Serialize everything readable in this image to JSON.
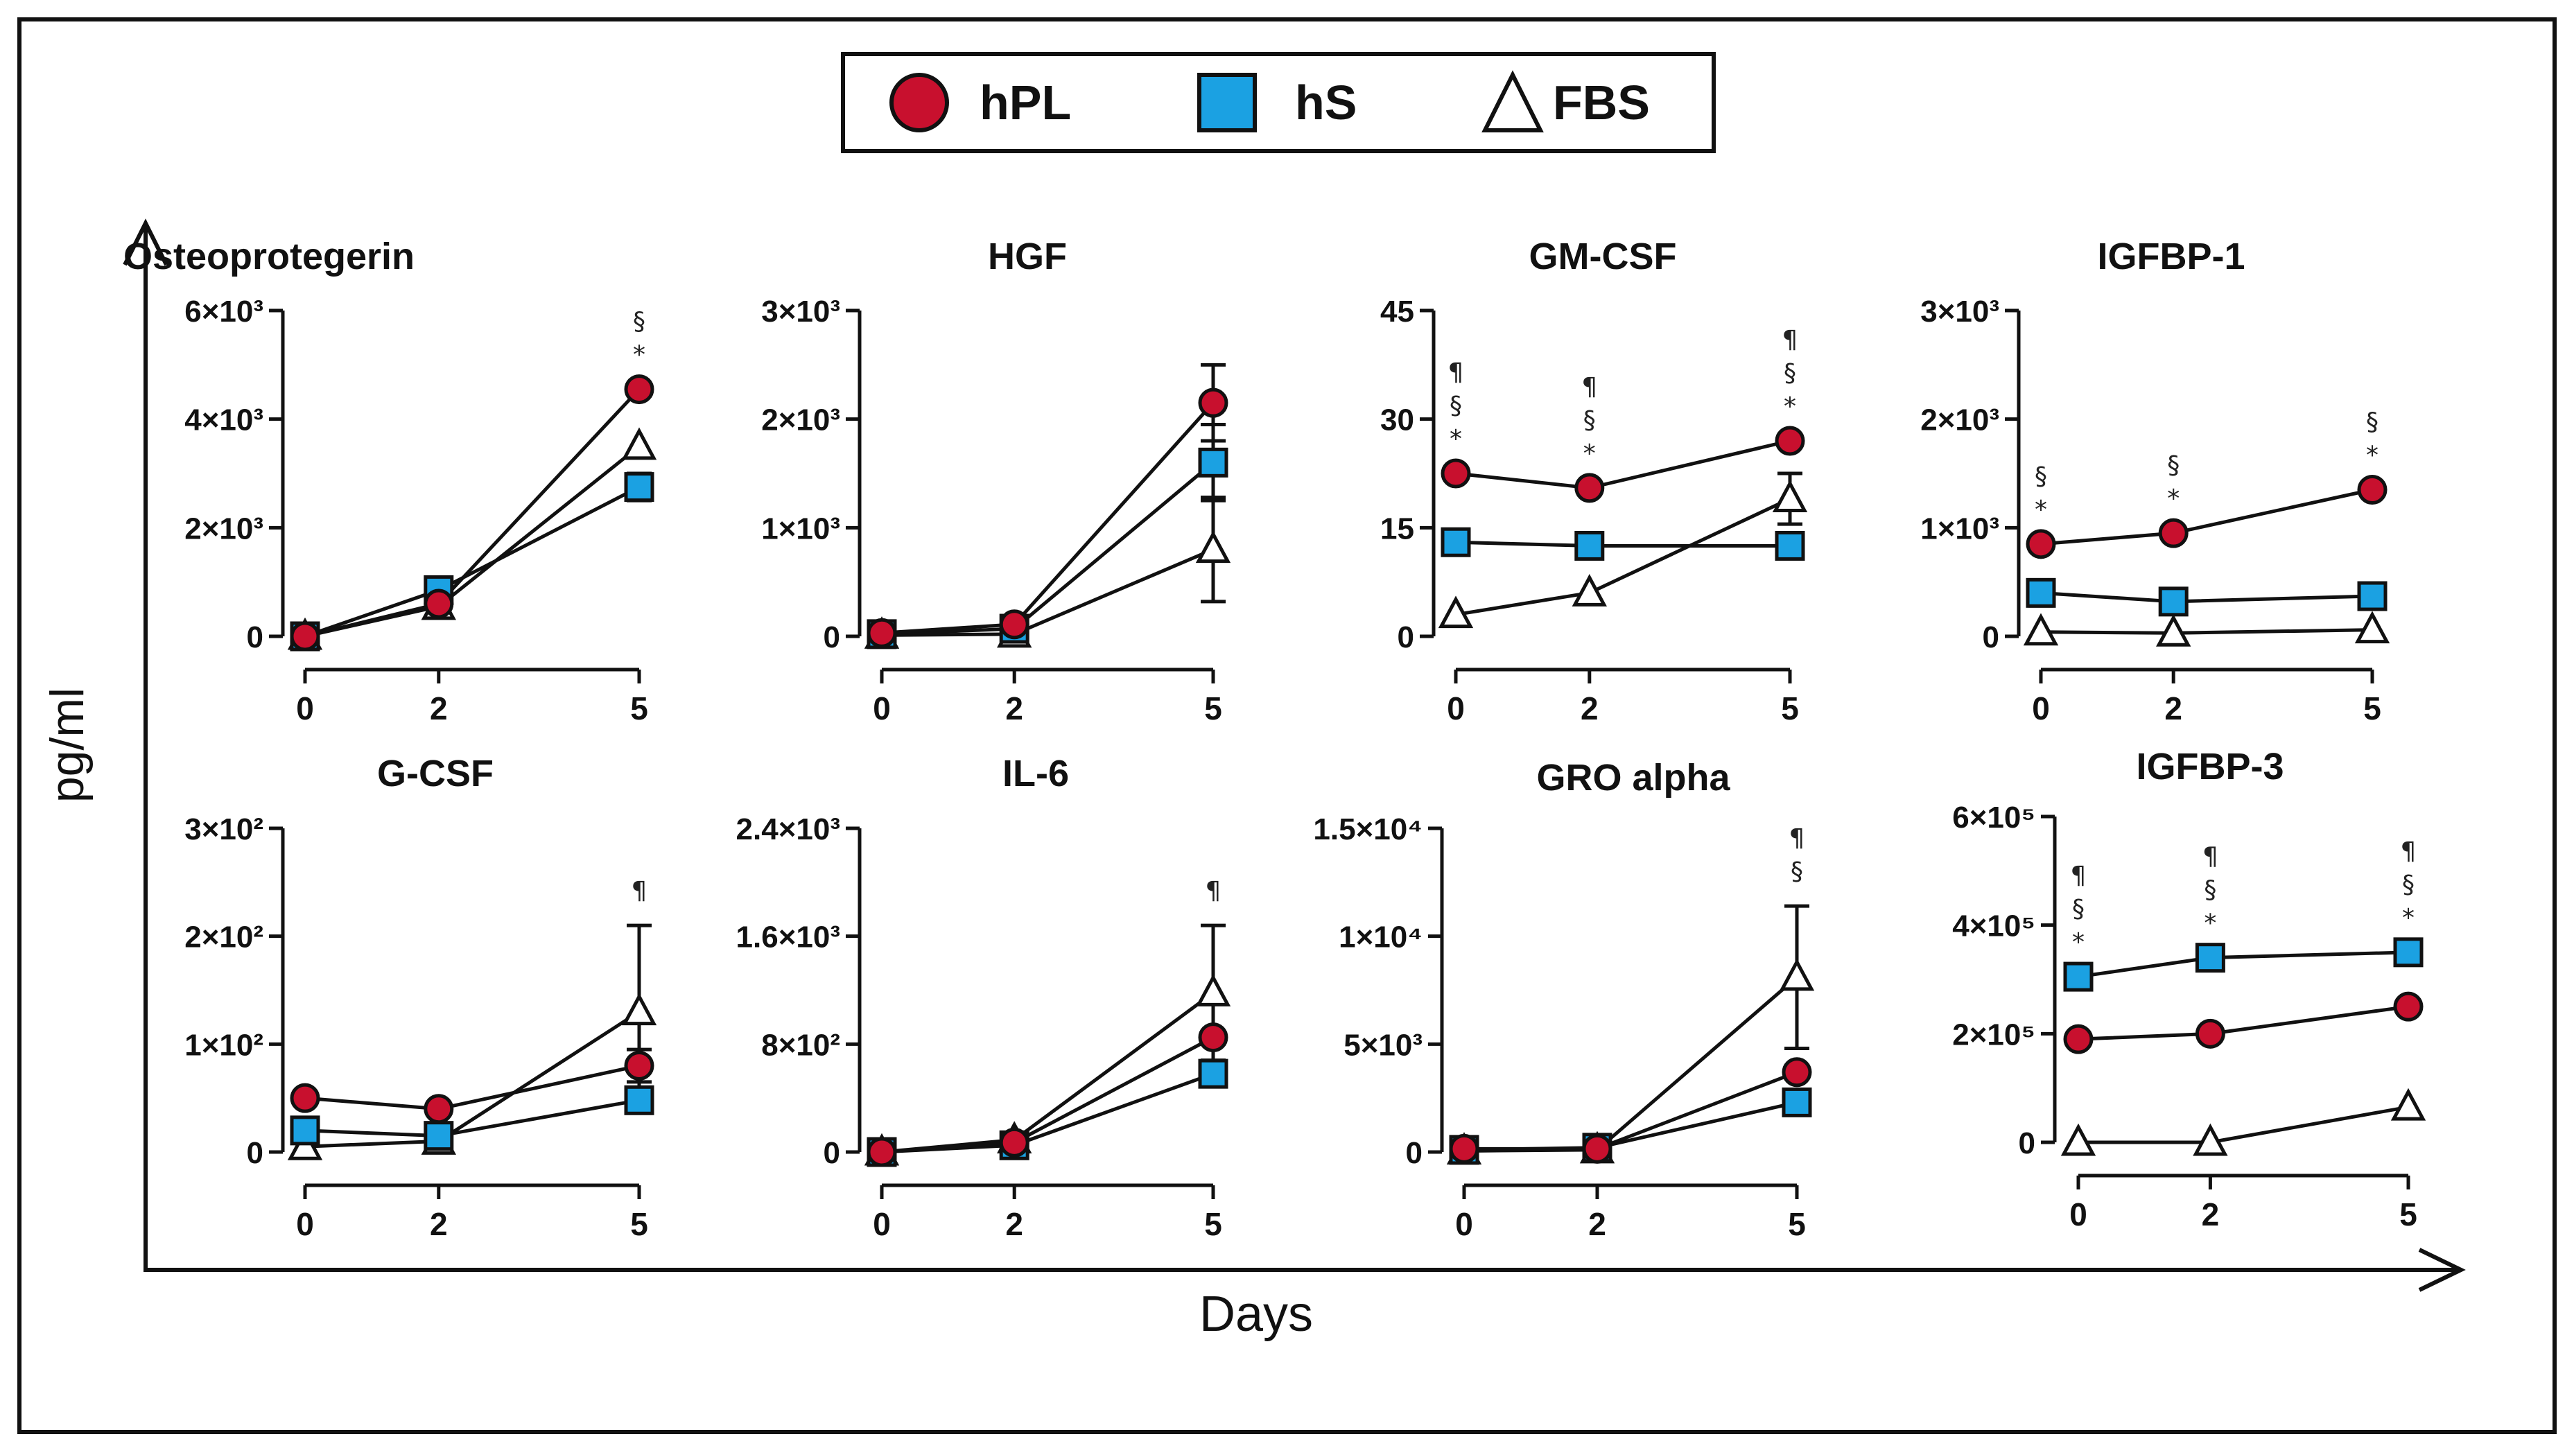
{
  "legend": {
    "items": [
      {
        "label": "hPL",
        "marker": "circle",
        "color": "#c8102e"
      },
      {
        "label": "hS",
        "marker": "square",
        "color": "#1ba1e2"
      },
      {
        "label": "FBS",
        "marker": "triangle",
        "color": "#ffffff"
      }
    ]
  },
  "axes": {
    "ylabel": "pg/ml",
    "xlabel": "Days"
  },
  "chart_data": [
    {
      "type": "line",
      "title": "Osteoprotegerin",
      "categories": [
        0,
        2,
        5
      ],
      "yticks": [
        0,
        2000,
        4000,
        6000
      ],
      "ytick_labels": [
        "0",
        "2×10³",
        "4×10³",
        "6×10³"
      ],
      "ylim": [
        0,
        6000
      ],
      "series": [
        {
          "name": "hPL",
          "values": [
            0,
            600,
            4550
          ],
          "errors": [
            0,
            0,
            0
          ]
        },
        {
          "name": "hS",
          "values": [
            0,
            850,
            2750
          ],
          "errors": [
            0,
            0,
            250
          ]
        },
        {
          "name": "FBS",
          "values": [
            0,
            550,
            3500
          ],
          "errors": [
            0,
            0,
            0
          ]
        }
      ],
      "annotations": [
        {
          "x": 5,
          "symbols": [
            "§",
            "*"
          ]
        }
      ]
    },
    {
      "type": "line",
      "title": "HGF",
      "categories": [
        0,
        2,
        5
      ],
      "yticks": [
        0,
        1000,
        2000,
        3000
      ],
      "ytick_labels": [
        "0",
        "1×10³",
        "2×10³",
        "3×10³"
      ],
      "ylim": [
        0,
        3000
      ],
      "series": [
        {
          "name": "hPL",
          "values": [
            30,
            110,
            2150
          ],
          "errors": [
            0,
            0,
            350
          ]
        },
        {
          "name": "hS",
          "values": [
            20,
            70,
            1600
          ],
          "errors": [
            0,
            0,
            350
          ]
        },
        {
          "name": "FBS",
          "values": [
            10,
            20,
            800
          ],
          "errors": [
            0,
            0,
            480
          ]
        }
      ],
      "annotations": []
    },
    {
      "type": "line",
      "title": "GM-CSF",
      "categories": [
        0,
        2,
        5
      ],
      "yticks": [
        0,
        15,
        30,
        45
      ],
      "ytick_labels": [
        "0",
        "15",
        "30",
        "45"
      ],
      "ylim": [
        0,
        45
      ],
      "series": [
        {
          "name": "hPL",
          "values": [
            22.5,
            20.5,
            27
          ],
          "errors": [
            0,
            0,
            0
          ]
        },
        {
          "name": "hS",
          "values": [
            13,
            12.5,
            12.5
          ],
          "errors": [
            0,
            0,
            0
          ]
        },
        {
          "name": "FBS",
          "values": [
            3,
            6,
            19
          ],
          "errors": [
            0,
            0,
            3.5
          ]
        }
      ],
      "annotations": [
        {
          "x": 0,
          "symbols": [
            "¶",
            "§",
            "*"
          ]
        },
        {
          "x": 2,
          "symbols": [
            "¶",
            "§",
            "*"
          ]
        },
        {
          "x": 5,
          "symbols": [
            "¶",
            "§",
            "*"
          ]
        }
      ]
    },
    {
      "type": "line",
      "title": "IGFBP-1",
      "categories": [
        0,
        2,
        5
      ],
      "yticks": [
        0,
        1000,
        2000,
        3000
      ],
      "ytick_labels": [
        "0",
        "1×10³",
        "2×10³",
        "3×10³"
      ],
      "ylim": [
        0,
        3000
      ],
      "series": [
        {
          "name": "hPL",
          "values": [
            850,
            950,
            1350
          ],
          "errors": [
            0,
            0,
            0
          ]
        },
        {
          "name": "hS",
          "values": [
            400,
            320,
            370
          ],
          "errors": [
            120,
            0,
            0
          ]
        },
        {
          "name": "FBS",
          "values": [
            40,
            30,
            60
          ],
          "errors": [
            0,
            0,
            0
          ]
        }
      ],
      "annotations": [
        {
          "x": 0,
          "symbols": [
            "§",
            "*"
          ]
        },
        {
          "x": 2,
          "symbols": [
            "§",
            "*"
          ]
        },
        {
          "x": 5,
          "symbols": [
            "§",
            "*"
          ]
        }
      ]
    },
    {
      "type": "line",
      "title": "G-CSF",
      "categories": [
        0,
        2,
        5
      ],
      "yticks": [
        0,
        100,
        200,
        300
      ],
      "ytick_labels": [
        "0",
        "1×10²",
        "2×10²",
        "3×10²"
      ],
      "ylim": [
        0,
        300
      ],
      "series": [
        {
          "name": "hPL",
          "values": [
            50,
            40,
            80
          ],
          "errors": [
            0,
            0,
            15
          ]
        },
        {
          "name": "hS",
          "values": [
            20,
            15,
            48
          ],
          "errors": [
            0,
            0,
            10
          ]
        },
        {
          "name": "FBS",
          "values": [
            5,
            10,
            130
          ],
          "errors": [
            0,
            0,
            80
          ]
        }
      ],
      "annotations": [
        {
          "x": 5,
          "symbols": [
            "¶"
          ]
        }
      ]
    },
    {
      "type": "line",
      "title": "IL-6",
      "categories": [
        0,
        2,
        5
      ],
      "yticks": [
        0,
        800,
        1600,
        2400
      ],
      "ytick_labels": [
        "0",
        "8×10²",
        "1.6×10³",
        "2.4×10³"
      ],
      "ylim": [
        0,
        2400
      ],
      "series": [
        {
          "name": "hPL",
          "values": [
            0,
            70,
            850
          ],
          "errors": [
            0,
            0,
            0
          ]
        },
        {
          "name": "hS",
          "values": [
            0,
            50,
            580
          ],
          "errors": [
            0,
            0,
            0
          ]
        },
        {
          "name": "FBS",
          "values": [
            0,
            90,
            1180
          ],
          "errors": [
            0,
            0,
            500
          ]
        }
      ],
      "annotations": [
        {
          "x": 5,
          "symbols": [
            "¶"
          ]
        }
      ]
    },
    {
      "type": "line",
      "title": "GRO alpha",
      "categories": [
        0,
        2,
        5
      ],
      "yticks": [
        0,
        5000,
        10000,
        15000
      ],
      "ytick_labels": [
        "0",
        "5×10³",
        "1×10⁴",
        "1.5×10⁴"
      ],
      "ylim": [
        0,
        15000
      ],
      "series": [
        {
          "name": "hPL",
          "values": [
            150,
            150,
            3700
          ],
          "errors": [
            0,
            0,
            0
          ]
        },
        {
          "name": "hS",
          "values": [
            100,
            200,
            2300
          ],
          "errors": [
            0,
            0,
            0
          ]
        },
        {
          "name": "FBS",
          "values": [
            50,
            100,
            8100
          ],
          "errors": [
            0,
            0,
            3300
          ]
        }
      ],
      "annotations": [
        {
          "x": 5,
          "symbols": [
            "¶",
            "§"
          ]
        }
      ]
    },
    {
      "type": "line",
      "title": "IGFBP-3",
      "categories": [
        0,
        2,
        5
      ],
      "yticks": [
        0,
        200000,
        400000,
        600000
      ],
      "ytick_labels": [
        "0",
        "2×10⁵",
        "4×10⁵",
        "6×10⁵"
      ],
      "ylim": [
        0,
        600000
      ],
      "series": [
        {
          "name": "hPL",
          "values": [
            190000,
            200000,
            250000
          ],
          "errors": [
            0,
            0,
            0
          ]
        },
        {
          "name": "hS",
          "values": [
            305000,
            340000,
            350000
          ],
          "errors": [
            0,
            0,
            0
          ]
        },
        {
          "name": "FBS",
          "values": [
            0,
            0,
            65000
          ],
          "errors": [
            0,
            0,
            0
          ]
        }
      ],
      "annotations": [
        {
          "x": 0,
          "symbols": [
            "¶",
            "§",
            "*"
          ]
        },
        {
          "x": 2,
          "symbols": [
            "¶",
            "§",
            "*"
          ]
        },
        {
          "x": 5,
          "symbols": [
            "¶",
            "§",
            "*"
          ]
        }
      ]
    }
  ]
}
